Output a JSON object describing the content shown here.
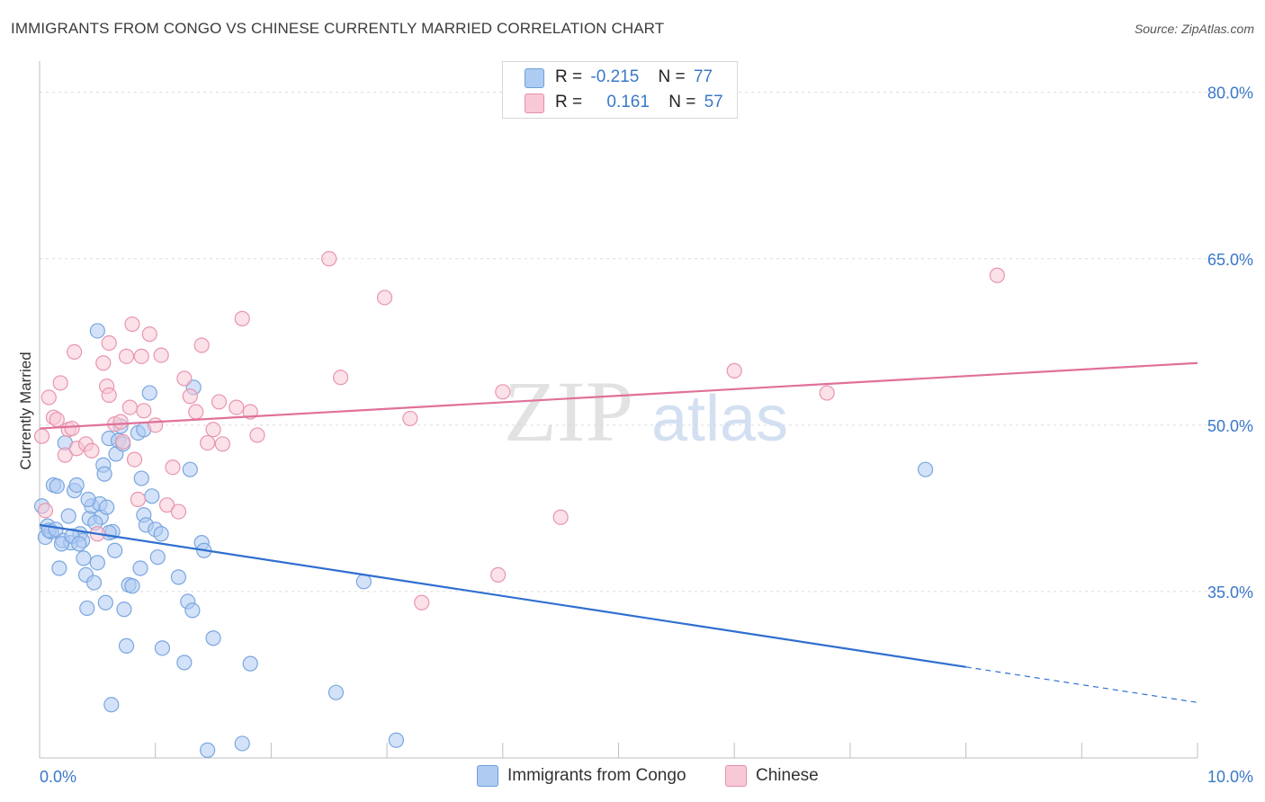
{
  "title": "IMMIGRANTS FROM CONGO VS CHINESE CURRENTLY MARRIED CORRELATION CHART",
  "source": "Source: ZipAtlas.com",
  "watermark": {
    "zip": "ZIP",
    "atlas": "atlas"
  },
  "legend": {
    "rows": [
      {
        "r_label": "R =",
        "r_value": "-0.215",
        "n_label": "N =",
        "n_value": "77",
        "color": "#aecbf2",
        "border": "#6d9fdc"
      },
      {
        "r_label": "R =",
        "r_value": "0.161",
        "n_label": "N =",
        "n_value": "57",
        "color": "#f8c8d6",
        "border": "#e58fab"
      }
    ]
  },
  "bottom_legend": [
    {
      "label": "Immigrants from Congo",
      "color": "#aecbf2",
      "border": "#6d9fdc"
    },
    {
      "label": "Chinese",
      "color": "#f8c8d6",
      "border": "#e58fab"
    }
  ],
  "chart_data": {
    "type": "scatter",
    "title": "IMMIGRANTS FROM CONGO VS CHINESE CURRENTLY MARRIED CORRELATION CHART",
    "xlabel": "",
    "ylabel": "Currently Married",
    "xlim": [
      0,
      10
    ],
    "ylim": [
      20,
      82
    ],
    "x_tick_labels": [
      "0.0%",
      "10.0%"
    ],
    "y_ticks": [
      35,
      50,
      65,
      80
    ],
    "y_tick_labels": [
      "35.0%",
      "50.0%",
      "65.0%",
      "80.0%"
    ],
    "grid": true,
    "series": [
      {
        "name": "Immigrants from Congo",
        "color": "#7aa6e0",
        "fill": "#aecbf2",
        "line_color": "#2f6fd0",
        "trend": {
          "x0": 0.0,
          "y0": 41.0,
          "x1": 8.0,
          "y1": 28.2,
          "dash_to_x": 10.0,
          "dash_to_y": 25.0
        },
        "points": [
          [
            0.02,
            42.7
          ],
          [
            0.05,
            39.9
          ],
          [
            0.07,
            40.9
          ],
          [
            0.1,
            40.4
          ],
          [
            0.12,
            44.6
          ],
          [
            0.15,
            44.5
          ],
          [
            0.17,
            37.1
          ],
          [
            0.2,
            39.6
          ],
          [
            0.22,
            48.4
          ],
          [
            0.25,
            41.8
          ],
          [
            0.27,
            39.4
          ],
          [
            0.3,
            44.1
          ],
          [
            0.32,
            44.6
          ],
          [
            0.35,
            40.2
          ],
          [
            0.37,
            39.6
          ],
          [
            0.38,
            38.0
          ],
          [
            0.4,
            36.5
          ],
          [
            0.41,
            33.5
          ],
          [
            0.43,
            41.6
          ],
          [
            0.45,
            42.7
          ],
          [
            0.47,
            35.8
          ],
          [
            0.5,
            37.6
          ],
          [
            0.52,
            42.9
          ],
          [
            0.53,
            41.7
          ],
          [
            0.55,
            46.4
          ],
          [
            0.56,
            45.6
          ],
          [
            0.57,
            34.0
          ],
          [
            0.58,
            42.6
          ],
          [
            0.6,
            48.8
          ],
          [
            0.62,
            24.8
          ],
          [
            0.63,
            40.4
          ],
          [
            0.65,
            38.7
          ],
          [
            0.66,
            47.4
          ],
          [
            0.68,
            48.6
          ],
          [
            0.7,
            49.9
          ],
          [
            0.73,
            33.4
          ],
          [
            0.75,
            30.1
          ],
          [
            0.77,
            35.6
          ],
          [
            0.8,
            35.5
          ],
          [
            0.85,
            49.3
          ],
          [
            0.87,
            37.1
          ],
          [
            0.88,
            45.2
          ],
          [
            0.9,
            41.9
          ],
          [
            0.92,
            41.0
          ],
          [
            0.95,
            52.9
          ],
          [
            0.97,
            43.6
          ],
          [
            1.0,
            40.6
          ],
          [
            1.02,
            38.1
          ],
          [
            1.05,
            40.2
          ],
          [
            1.06,
            29.9
          ],
          [
            1.2,
            36.3
          ],
          [
            1.25,
            28.6
          ],
          [
            1.28,
            34.1
          ],
          [
            1.3,
            46.0
          ],
          [
            1.32,
            33.3
          ],
          [
            1.33,
            53.4
          ],
          [
            1.4,
            39.4
          ],
          [
            1.42,
            38.7
          ],
          [
            1.45,
            20.7
          ],
          [
            1.5,
            30.8
          ],
          [
            1.75,
            21.3
          ],
          [
            1.82,
            28.5
          ],
          [
            2.56,
            25.9
          ],
          [
            2.8,
            35.9
          ],
          [
            3.08,
            21.6
          ],
          [
            7.65,
            46.0
          ],
          [
            0.5,
            58.5
          ],
          [
            0.08,
            40.5
          ],
          [
            0.14,
            40.6
          ],
          [
            0.19,
            39.3
          ],
          [
            0.28,
            40.0
          ],
          [
            0.34,
            39.3
          ],
          [
            0.42,
            43.3
          ],
          [
            0.48,
            41.2
          ],
          [
            0.6,
            40.3
          ],
          [
            0.72,
            48.3
          ],
          [
            0.9,
            49.6
          ]
        ]
      },
      {
        "name": "Chinese",
        "color": "#e895b0",
        "fill": "#f8c8d6",
        "line_color": "#e0709a",
        "trend": {
          "x0": 0.0,
          "y0": 49.7,
          "x1": 10.0,
          "y1": 55.6
        },
        "points": [
          [
            0.02,
            49.0
          ],
          [
            0.05,
            42.3
          ],
          [
            0.08,
            52.5
          ],
          [
            0.12,
            50.7
          ],
          [
            0.15,
            50.5
          ],
          [
            0.18,
            53.8
          ],
          [
            0.22,
            47.3
          ],
          [
            0.25,
            49.6
          ],
          [
            0.28,
            49.7
          ],
          [
            0.3,
            56.6
          ],
          [
            0.32,
            47.9
          ],
          [
            0.4,
            48.3
          ],
          [
            0.45,
            47.7
          ],
          [
            0.5,
            40.2
          ],
          [
            0.55,
            55.6
          ],
          [
            0.58,
            53.5
          ],
          [
            0.6,
            52.7
          ],
          [
            0.65,
            50.1
          ],
          [
            0.7,
            50.3
          ],
          [
            0.72,
            48.5
          ],
          [
            0.75,
            56.2
          ],
          [
            0.78,
            51.6
          ],
          [
            0.8,
            59.1
          ],
          [
            0.82,
            46.9
          ],
          [
            0.85,
            43.3
          ],
          [
            0.88,
            56.2
          ],
          [
            0.9,
            51.3
          ],
          [
            0.95,
            58.2
          ],
          [
            1.0,
            50.0
          ],
          [
            1.05,
            56.3
          ],
          [
            1.1,
            42.8
          ],
          [
            1.15,
            46.2
          ],
          [
            1.2,
            42.2
          ],
          [
            1.25,
            54.2
          ],
          [
            1.3,
            52.6
          ],
          [
            1.35,
            51.2
          ],
          [
            1.4,
            57.2
          ],
          [
            1.45,
            48.4
          ],
          [
            1.5,
            49.6
          ],
          [
            1.55,
            52.1
          ],
          [
            1.58,
            48.3
          ],
          [
            1.7,
            51.6
          ],
          [
            1.75,
            59.6
          ],
          [
            1.82,
            51.2
          ],
          [
            1.88,
            49.1
          ],
          [
            2.5,
            65.0
          ],
          [
            2.6,
            54.3
          ],
          [
            2.98,
            61.5
          ],
          [
            3.2,
            50.6
          ],
          [
            3.3,
            34.0
          ],
          [
            3.96,
            36.5
          ],
          [
            4.0,
            53.0
          ],
          [
            4.5,
            41.7
          ],
          [
            6.0,
            54.9
          ],
          [
            6.8,
            52.9
          ],
          [
            8.27,
            63.5
          ],
          [
            0.6,
            57.4
          ]
        ]
      }
    ]
  }
}
